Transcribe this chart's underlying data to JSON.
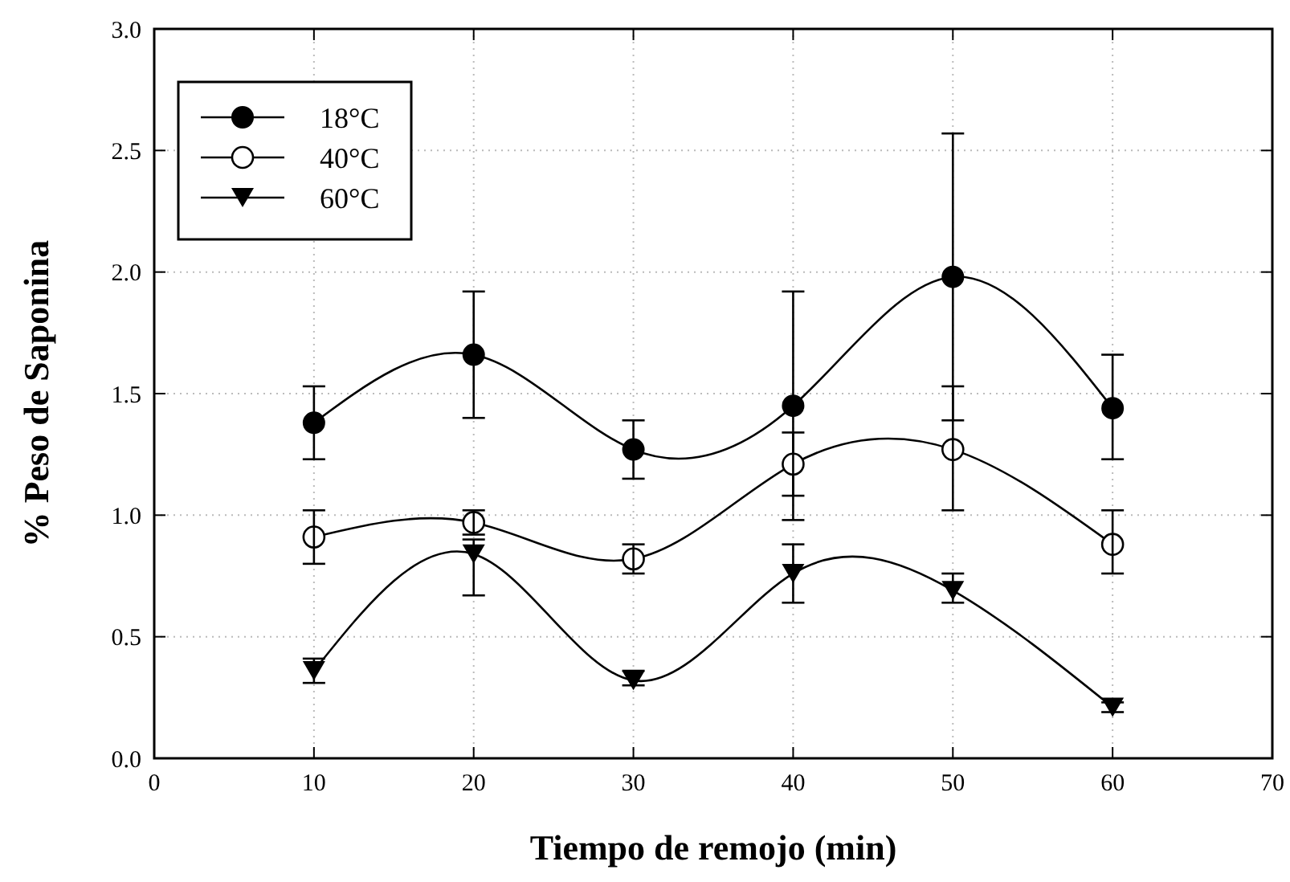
{
  "chart_data": {
    "type": "line",
    "xlabel": "Tiempo de remojo (min)",
    "ylabel": "% Peso de Saponina",
    "x": [
      10,
      20,
      30,
      40,
      50,
      60
    ],
    "series": [
      {
        "name": "18°C",
        "color": "#000000",
        "marker": "circle",
        "values": [
          1.38,
          1.66,
          1.27,
          1.45,
          1.98,
          1.44
        ],
        "errors": [
          0.15,
          0.26,
          0.12,
          0.47,
          0.59,
          [
            1.23,
            1.66
          ]
        ]
      },
      {
        "name": "40°C",
        "color": "#000000",
        "marker": "circle_open",
        "values": [
          0.91,
          0.97,
          0.82,
          1.21,
          1.27,
          0.88
        ],
        "errors": [
          0.11,
          0.05,
          0.06,
          0.13,
          [
            1.02,
            1.53
          ],
          [
            0.76,
            1.02
          ]
        ]
      },
      {
        "name": "60°C",
        "color": "#000000",
        "marker": "triangle",
        "values": [
          0.36,
          0.84,
          0.32,
          0.76,
          0.69,
          0.21
        ],
        "errors": [
          0.05,
          [
            0.67,
            0.9
          ],
          [
            0.3,
            0.36
          ],
          0.12,
          [
            0.64,
            0.76
          ],
          0.02
        ]
      }
    ],
    "xlim": [
      0,
      70
    ],
    "xticks": [
      0,
      10,
      20,
      30,
      40,
      50,
      60,
      70
    ],
    "ylim": [
      0,
      3
    ],
    "yticks": [
      {
        "value": 0,
        "label": "0.0"
      },
      0.5,
      {
        "value": 1,
        "label": "1.0"
      },
      1.5,
      {
        "value": 2,
        "label": "2.0"
      },
      2.5,
      {
        "value": 3,
        "label": "3.0"
      }
    ],
    "grid": true,
    "legend": "top left",
    "line_style": "solid"
  }
}
